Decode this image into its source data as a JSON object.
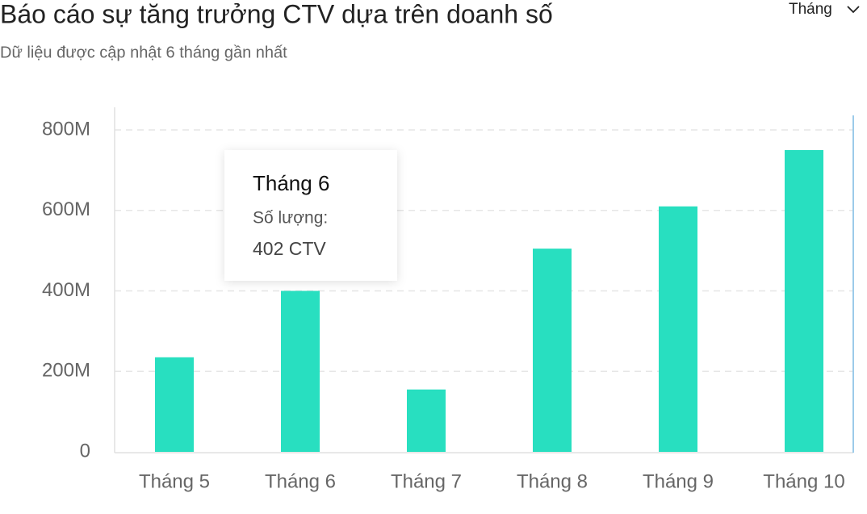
{
  "chart_data": {
    "type": "bar",
    "title": "Báo cáo sự tăng trưởng CTV dựa trên doanh số",
    "subtitle": "Dữ liệu được cập nhật 6 tháng gần nhất",
    "dropdown": "Tháng",
    "categories": [
      "Tháng 5",
      "Tháng 6",
      "Tháng 7",
      "Tháng 8",
      "Tháng 9",
      "Tháng 10"
    ],
    "values": [
      235000000,
      400000000,
      155000000,
      505000000,
      610000000,
      750000000
    ],
    "color": "#28dfc0",
    "ylim": [
      0,
      800000000
    ],
    "yticks": [
      0,
      {
        "value": 200000000,
        "label": "200M"
      },
      {
        "value": 400000000,
        "label": "400M"
      },
      {
        "value": 600000000,
        "label": "600M"
      },
      {
        "value": 800000000,
        "label": "800M"
      }
    ],
    "grid": true,
    "tooltip": {
      "title": "Tháng 6",
      "label": "Số lượng:",
      "text": "402 CTV"
    }
  }
}
